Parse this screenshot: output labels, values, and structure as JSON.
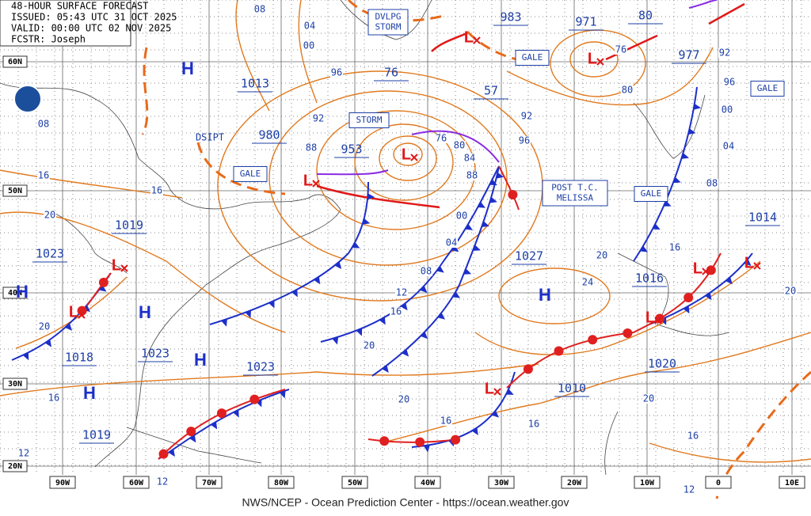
{
  "header": {
    "title": "48-HOUR SURFACE FORECAST",
    "issued": "ISSUED: 05:43 UTC 31 OCT 2025",
    "valid": "VALID:  00:00 UTC 02 NOV 2025",
    "forecaster": "FCSTR:  Joseph"
  },
  "footer": "NWS/NCEP - Ocean Prediction Center - https://ocean.weather.gov",
  "lat_labels": [
    "60N",
    "50N",
    "40N",
    "30N",
    "20N"
  ],
  "lon_labels": [
    "90W",
    "60W",
    "70W",
    "80W",
    "50W",
    "40W",
    "30W",
    "20W",
    "10W",
    "0",
    "10E"
  ],
  "highs": [
    "H",
    "H",
    "H",
    "H",
    "H",
    "H"
  ],
  "lows": [
    "L",
    "L",
    "L",
    "L",
    "L",
    "L",
    "L",
    "L",
    "L",
    "L"
  ],
  "pressures": [
    "983",
    "971",
    "80",
    "977",
    "1013",
    "76",
    "57",
    "980",
    "953",
    "1019",
    "1023",
    "1027",
    "1016",
    "1014",
    "1018",
    "1023",
    "1023",
    "1020",
    "1010",
    "1019"
  ],
  "boxes": [
    [
      "DVLPG",
      "STORM"
    ],
    [
      "GALE"
    ],
    [
      "GALE"
    ],
    [
      "STORM"
    ],
    [
      "GALE"
    ],
    [
      "POST T.C.",
      "MELISSA"
    ],
    [
      "GALE"
    ]
  ],
  "notes": [
    "DSIPT"
  ],
  "isobar_labels": [
    "08",
    "04",
    "00",
    "96",
    "92",
    "88",
    "16",
    "16",
    "08",
    "20",
    "76",
    "80",
    "84",
    "88",
    "00",
    "04",
    "08",
    "12",
    "16",
    "20",
    "20",
    "16",
    "16",
    "96",
    "92",
    "76",
    "80",
    "00",
    "96",
    "92",
    "04",
    "08",
    "20",
    "24",
    "16",
    "20",
    "20",
    "16",
    "12",
    "12",
    "16",
    "20",
    "12"
  ]
}
